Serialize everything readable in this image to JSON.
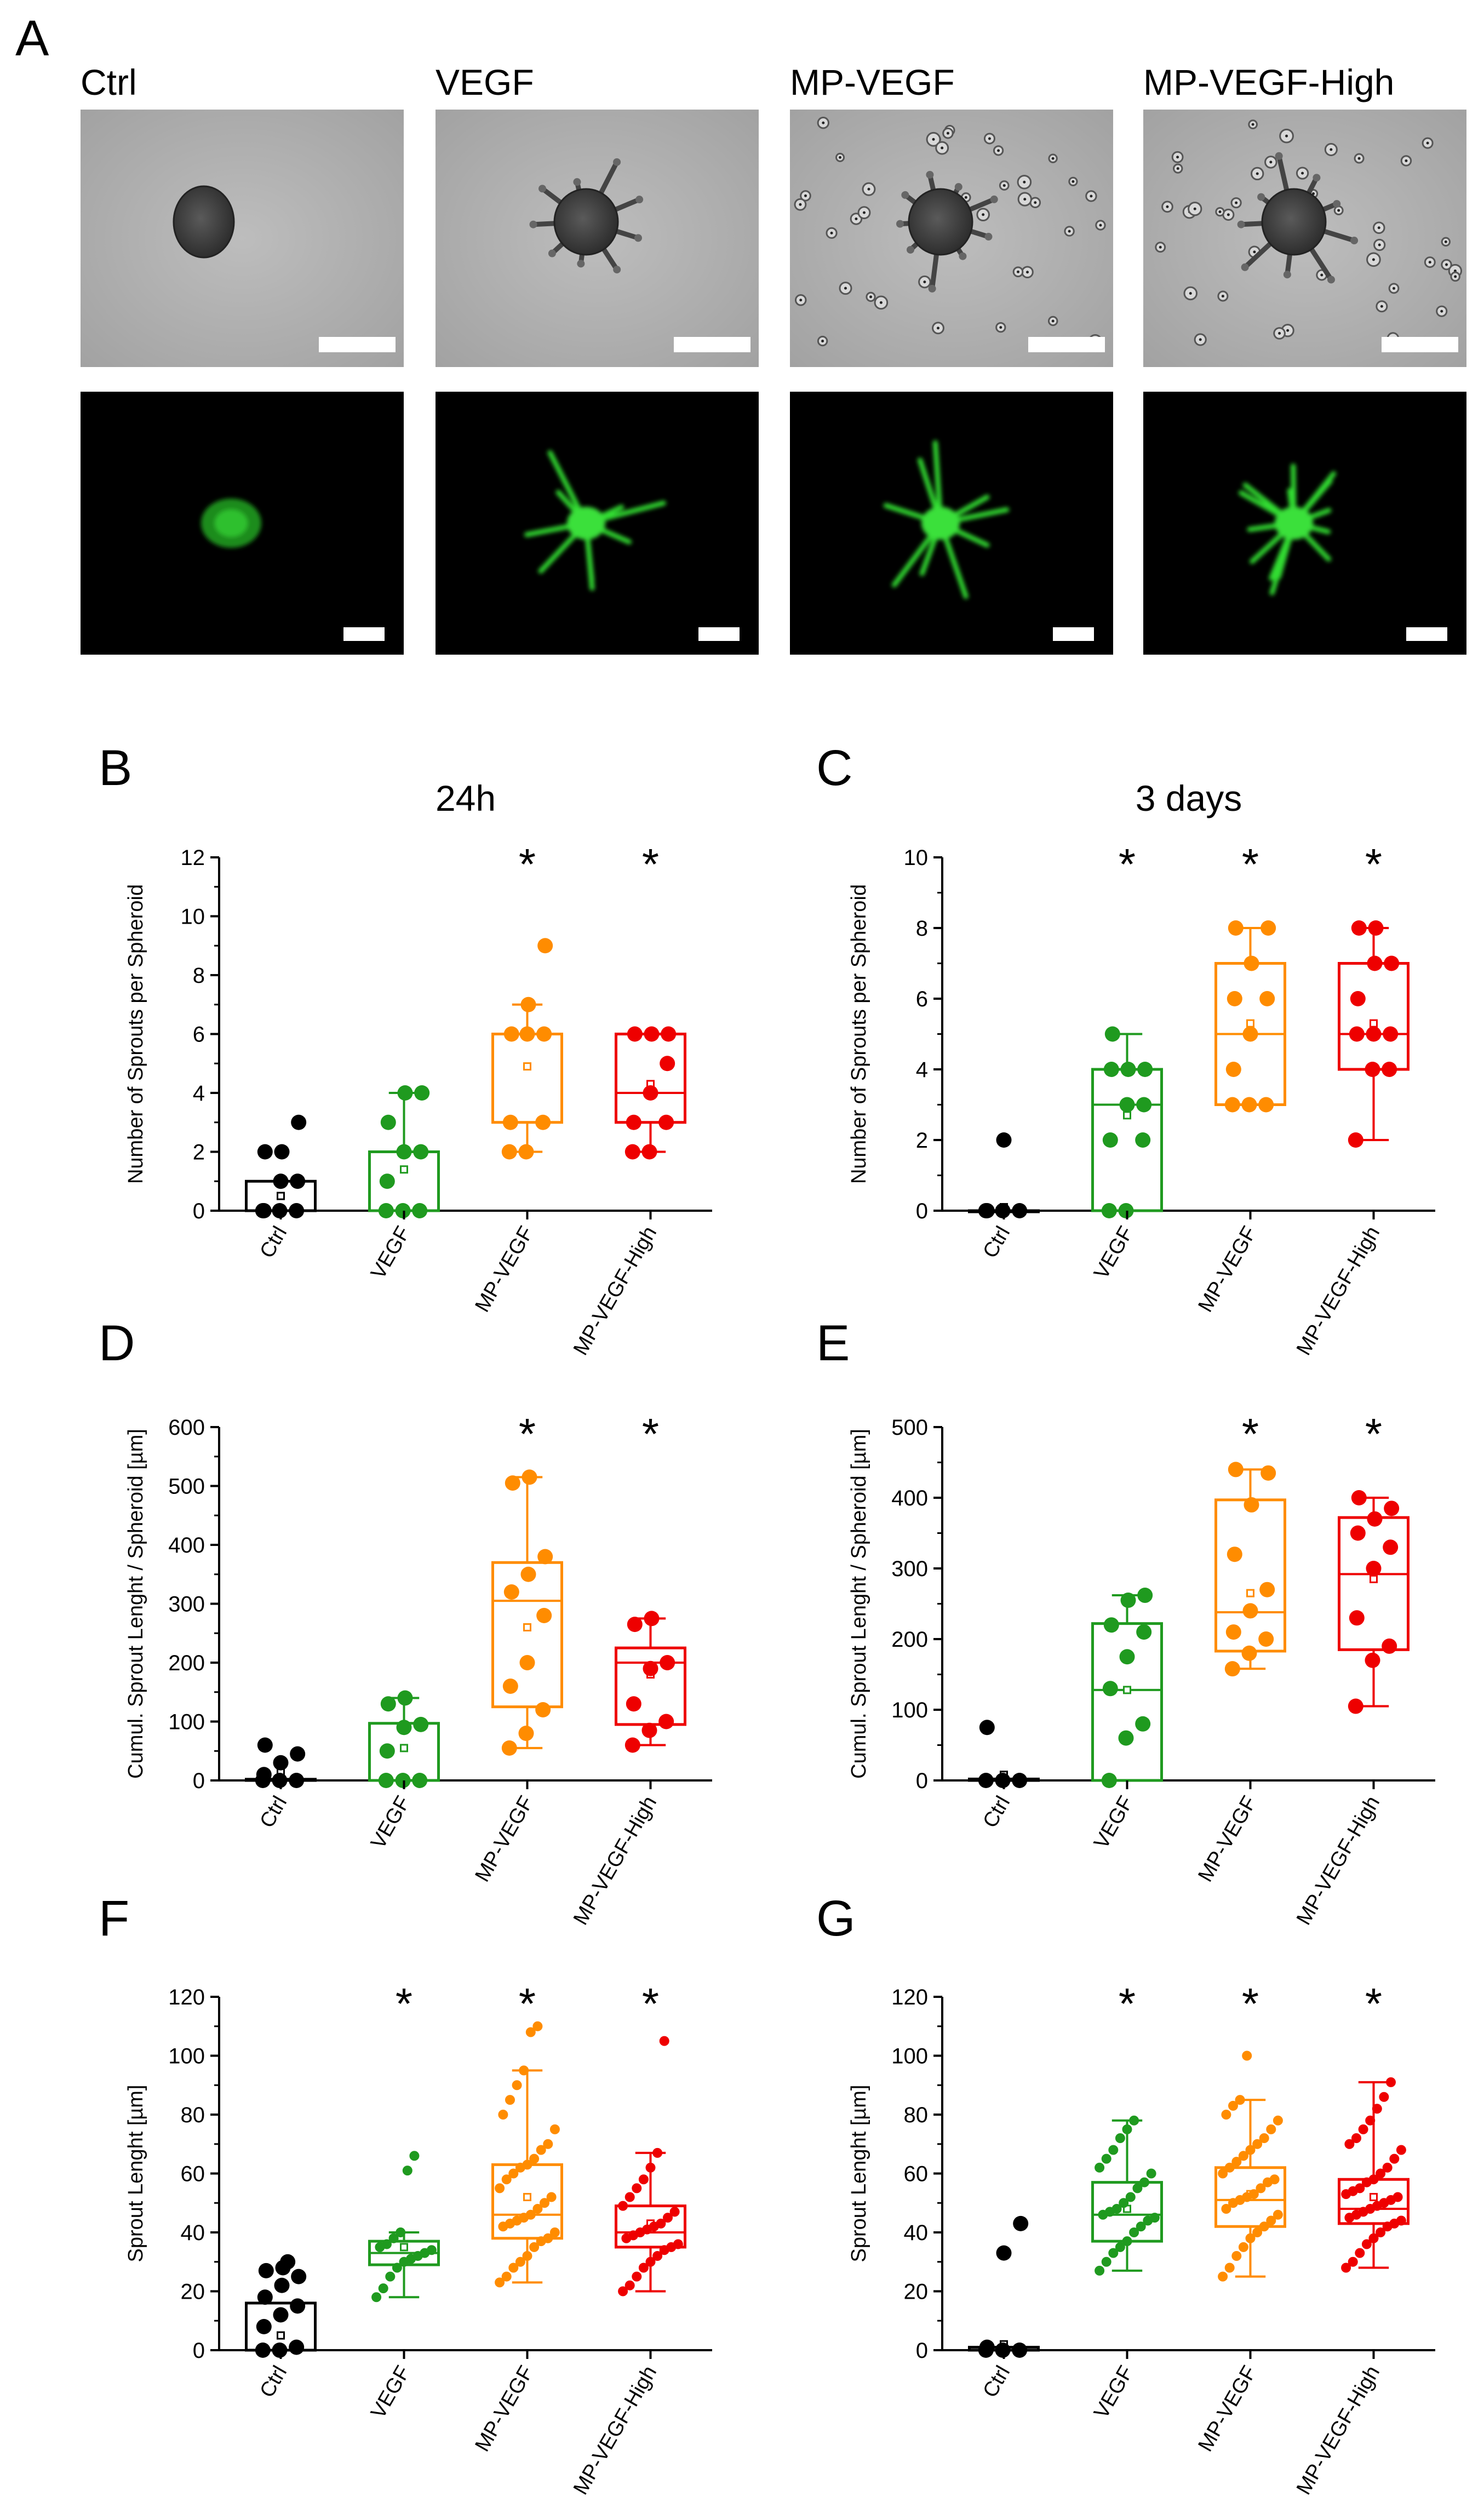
{
  "figure": {
    "panels": [
      "A",
      "B",
      "C",
      "D",
      "E",
      "F",
      "G"
    ],
    "conditions": [
      "Ctrl",
      "VEGF",
      "MP-VEGF",
      "MP-VEGF-High"
    ],
    "colors": {
      "Ctrl": "#000000",
      "VEGF": "#1f9a1f",
      "MP-VEGF": "#ff8c00",
      "MP-VEGF-High": "#ee0000"
    },
    "microscopy": {
      "top_row": "brightfield",
      "bottom_row": "fluorescence-green"
    }
  },
  "chart_data": [
    {
      "panel": "B",
      "type": "box",
      "title": "24h",
      "ylabel": "Number of Sprouts per Spheroid",
      "ylim": [
        0,
        12
      ],
      "yticks": [
        0,
        2,
        4,
        6,
        8,
        10,
        12
      ],
      "categories": [
        "Ctrl",
        "VEGF",
        "MP-VEGF",
        "MP-VEGF-High"
      ],
      "boxes": [
        {
          "q1": 0,
          "median": 0,
          "q3": 1,
          "whisker_low": 0,
          "whisker_high": 1,
          "mean": 0.5
        },
        {
          "q1": 0,
          "median": 0,
          "q3": 2,
          "whisker_low": 0,
          "whisker_high": 4,
          "mean": 1.4
        },
        {
          "q1": 3,
          "median": 3,
          "q3": 6,
          "whisker_low": 2,
          "whisker_high": 7,
          "mean": 4.9
        },
        {
          "q1": 3,
          "median": 4,
          "q3": 6,
          "whisker_low": 2,
          "whisker_high": 6,
          "mean": 4.3
        }
      ],
      "points": [
        [
          0,
          0,
          0,
          0,
          1,
          1,
          2,
          2,
          3
        ],
        [
          0,
          0,
          0,
          1,
          2,
          2,
          3,
          4,
          4
        ],
        [
          2,
          2,
          3,
          3,
          6,
          6,
          6,
          7,
          9
        ],
        [
          2,
          2,
          3,
          3,
          4,
          5,
          6,
          6,
          6
        ]
      ],
      "significance": [
        "",
        "",
        "*",
        "*"
      ]
    },
    {
      "panel": "C",
      "type": "box",
      "title": "3 days",
      "ylabel": "Number of Sprouts per Spheroid",
      "ylim": [
        0,
        10
      ],
      "yticks": [
        0,
        2,
        4,
        6,
        8,
        10
      ],
      "categories": [
        "Ctrl",
        "VEGF",
        "MP-VEGF",
        "MP-VEGF-High"
      ],
      "boxes": [
        {
          "q1": 0,
          "median": 0,
          "q3": 0,
          "whisker_low": 0,
          "whisker_high": 0,
          "mean": 0.1
        },
        {
          "q1": 0,
          "median": 3,
          "q3": 4,
          "whisker_low": 0,
          "whisker_high": 5,
          "mean": 2.7
        },
        {
          "q1": 3,
          "median": 5,
          "q3": 7,
          "whisker_low": 3,
          "whisker_high": 8,
          "mean": 5.3
        },
        {
          "q1": 4,
          "median": 5,
          "q3": 7,
          "whisker_low": 2,
          "whisker_high": 8,
          "mean": 5.3
        }
      ],
      "points": [
        [
          0,
          0,
          0,
          0,
          2
        ],
        [
          0,
          0,
          2,
          2,
          3,
          3,
          4,
          4,
          4,
          5
        ],
        [
          3,
          3,
          3,
          4,
          5,
          6,
          6,
          7,
          8,
          8
        ],
        [
          2,
          4,
          4,
          5,
          5,
          5,
          6,
          7,
          7,
          8,
          8
        ]
      ],
      "significance": [
        "",
        "*",
        "*",
        "*"
      ]
    },
    {
      "panel": "D",
      "type": "box",
      "ylabel": "Cumul. Sprout Lenght / Spheroid [µm]",
      "ylim": [
        0,
        600
      ],
      "yticks": [
        0,
        100,
        200,
        300,
        400,
        500,
        600
      ],
      "categories": [
        "Ctrl",
        "VEGF",
        "MP-VEGF",
        "MP-VEGF-High"
      ],
      "boxes": [
        {
          "q1": 0,
          "median": 0,
          "q3": 2,
          "whisker_low": 0,
          "whisker_high": 2,
          "mean": 15
        },
        {
          "q1": 0,
          "median": 0,
          "q3": 97,
          "whisker_low": 0,
          "whisker_high": 140,
          "mean": 55
        },
        {
          "q1": 125,
          "median": 305,
          "q3": 370,
          "whisker_low": 55,
          "whisker_high": 515,
          "mean": 260
        },
        {
          "q1": 95,
          "median": 200,
          "q3": 225,
          "whisker_low": 60,
          "whisker_high": 275,
          "mean": 180
        }
      ],
      "points": [
        [
          0,
          0,
          0,
          10,
          30,
          45,
          60
        ],
        [
          0,
          0,
          0,
          50,
          90,
          95,
          130,
          140
        ],
        [
          55,
          80,
          120,
          160,
          200,
          280,
          320,
          350,
          380,
          505,
          515
        ],
        [
          60,
          85,
          100,
          130,
          190,
          200,
          265,
          275
        ]
      ],
      "significance": [
        "",
        "",
        "*",
        "*"
      ]
    },
    {
      "panel": "E",
      "type": "box",
      "ylabel": "Cumul. Sprout Lenght / Spheroid [µm]",
      "ylim": [
        0,
        500
      ],
      "yticks": [
        0,
        100,
        200,
        300,
        400,
        500
      ],
      "categories": [
        "Ctrl",
        "VEGF",
        "MP-VEGF",
        "MP-VEGF-High"
      ],
      "boxes": [
        {
          "q1": 0,
          "median": 0,
          "q3": 2,
          "whisker_low": 0,
          "whisker_high": 2,
          "mean": 8
        },
        {
          "q1": 0,
          "median": 128,
          "q3": 222,
          "whisker_low": 0,
          "whisker_high": 262,
          "mean": 128
        },
        {
          "q1": 183,
          "median": 238,
          "q3": 397,
          "whisker_low": 158,
          "whisker_high": 440,
          "mean": 265
        },
        {
          "q1": 185,
          "median": 292,
          "q3": 372,
          "whisker_low": 105,
          "whisker_high": 400,
          "mean": 285
        }
      ],
      "points": [
        [
          0,
          0,
          0,
          75
        ],
        [
          0,
          60,
          80,
          130,
          175,
          210,
          220,
          255,
          262
        ],
        [
          158,
          180,
          200,
          210,
          240,
          270,
          320,
          390,
          435,
          440
        ],
        [
          105,
          170,
          190,
          230,
          300,
          330,
          350,
          370,
          385,
          400
        ]
      ],
      "significance": [
        "",
        "",
        "*",
        "*"
      ]
    },
    {
      "panel": "F",
      "type": "box",
      "ylabel": "Sprout Lenght [µm]",
      "ylim": [
        0,
        120
      ],
      "yticks": [
        0,
        20,
        40,
        60,
        80,
        100,
        120
      ],
      "categories": [
        "Ctrl",
        "VEGF",
        "MP-VEGF",
        "MP-VEGF-High"
      ],
      "boxes": [
        {
          "q1": 0,
          "median": 0,
          "q3": 16,
          "whisker_low": 0,
          "whisker_high": 16,
          "mean": 5
        },
        {
          "q1": 29,
          "median": 33,
          "q3": 37,
          "whisker_low": 18,
          "whisker_high": 40,
          "mean": 35
        },
        {
          "q1": 38,
          "median": 46,
          "q3": 63,
          "whisker_low": 23,
          "whisker_high": 95,
          "mean": 52
        },
        {
          "q1": 35,
          "median": 40,
          "q3": 49,
          "whisker_low": 20,
          "whisker_high": 67,
          "mean": 43
        }
      ],
      "points": [
        [
          0,
          0,
          1,
          8,
          12,
          15,
          18,
          22,
          25,
          27,
          28,
          30
        ],
        [
          18,
          21,
          25,
          28,
          30,
          31,
          32,
          33,
          34,
          35,
          36,
          38,
          40,
          61,
          66
        ],
        [
          23,
          25,
          28,
          30,
          32,
          35,
          37,
          38,
          40,
          42,
          43,
          44,
          45,
          46,
          48,
          50,
          52,
          55,
          58,
          60,
          62,
          63,
          65,
          68,
          70,
          75,
          80,
          85,
          90,
          95,
          108,
          110
        ],
        [
          20,
          22,
          25,
          28,
          30,
          32,
          34,
          35,
          36,
          38,
          39,
          40,
          41,
          42,
          43,
          45,
          47,
          49,
          52,
          55,
          58,
          62,
          67,
          105
        ]
      ],
      "significance": [
        "",
        "*",
        "*",
        "*"
      ]
    },
    {
      "panel": "G",
      "type": "box",
      "ylabel": "Sprout Lenght [µm]",
      "ylim": [
        0,
        120
      ],
      "yticks": [
        0,
        20,
        40,
        60,
        80,
        100,
        120
      ],
      "categories": [
        "Ctrl",
        "VEGF",
        "MP-VEGF",
        "MP-VEGF-High"
      ],
      "boxes": [
        {
          "q1": 0,
          "median": 0,
          "q3": 1,
          "whisker_low": 0,
          "whisker_high": 1,
          "mean": 2
        },
        {
          "q1": 37,
          "median": 46,
          "q3": 57,
          "whisker_low": 27,
          "whisker_high": 78,
          "mean": 48
        },
        {
          "q1": 42,
          "median": 51,
          "q3": 62,
          "whisker_low": 25,
          "whisker_high": 85,
          "mean": 53
        },
        {
          "q1": 43,
          "median": 48,
          "q3": 58,
          "whisker_low": 28,
          "whisker_high": 91,
          "mean": 52
        }
      ],
      "points": [
        [
          0,
          0,
          0,
          1,
          33,
          43
        ],
        [
          27,
          30,
          33,
          35,
          37,
          40,
          42,
          44,
          45,
          46,
          47,
          48,
          50,
          52,
          55,
          57,
          60,
          62,
          65,
          68,
          72,
          75,
          78
        ],
        [
          25,
          28,
          32,
          35,
          38,
          40,
          42,
          44,
          46,
          48,
          50,
          51,
          52,
          53,
          55,
          57,
          58,
          60,
          62,
          64,
          66,
          68,
          70,
          72,
          75,
          78,
          80,
          83,
          85,
          100
        ],
        [
          28,
          30,
          33,
          36,
          38,
          40,
          42,
          43,
          44,
          45,
          46,
          47,
          48,
          49,
          50,
          51,
          52,
          53,
          54,
          55,
          57,
          58,
          60,
          62,
          65,
          68,
          70,
          72,
          75,
          78,
          82,
          86,
          91
        ]
      ],
      "significance": [
        "",
        "*",
        "*",
        "*"
      ]
    }
  ]
}
